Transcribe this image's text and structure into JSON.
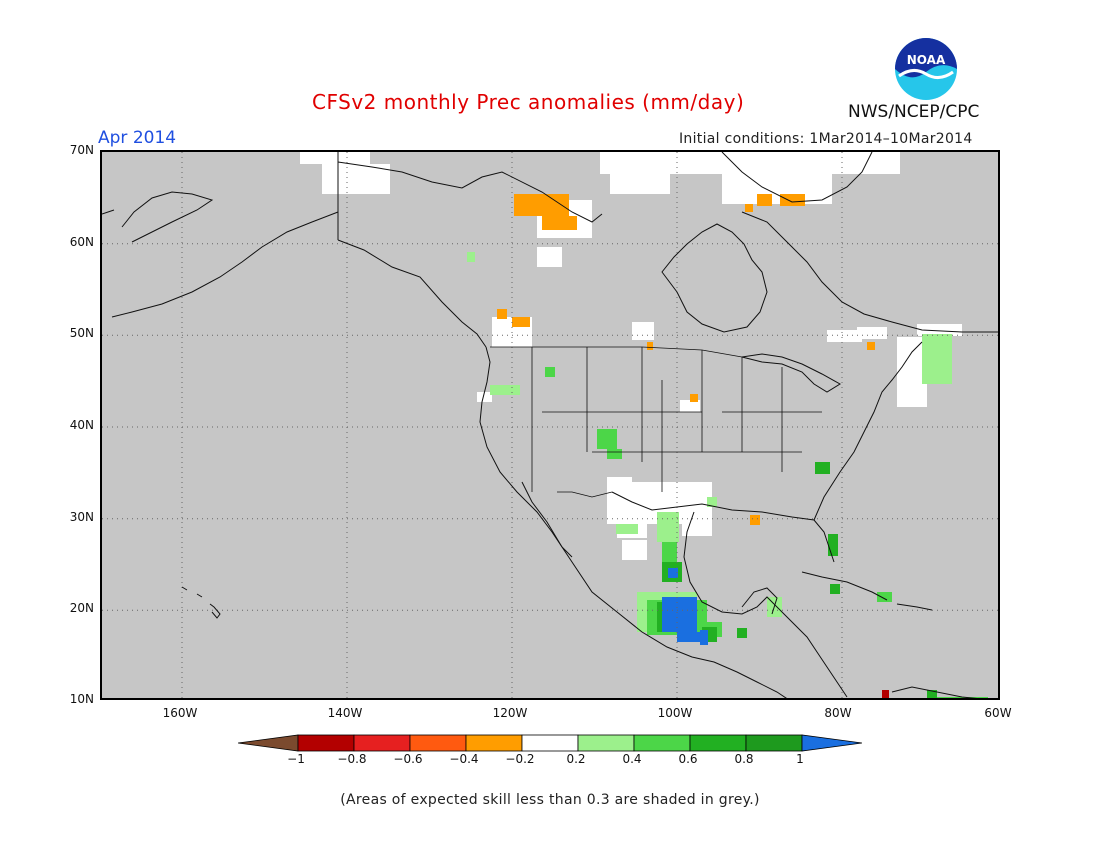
{
  "title": "CFSv2 monthly Prec anomalies (mm/day)",
  "month_label": "Apr 2014",
  "initial_conditions": "Initial conditions: 1Mar2014–10Mar2014",
  "agency": "NWS/NCEP/CPC",
  "logo_text": "NOAA",
  "latitude_labels": [
    "70N",
    "60N",
    "50N",
    "40N",
    "30N",
    "20N",
    "10N"
  ],
  "longitude_labels": [
    "160W",
    "140W",
    "120W",
    "100W",
    "80W",
    "60W"
  ],
  "colorbar": {
    "labels": [
      "−1",
      "−0.8",
      "−0.6",
      "−0.4",
      "−0.2",
      "0.2",
      "0.4",
      "0.6",
      "0.8",
      "1"
    ],
    "colors": [
      "#7b4a2e",
      "#b30000",
      "#e62020",
      "#ff5a10",
      "#ff9d00",
      "#ffffff",
      "#9cf08c",
      "#4cd648",
      "#22b022",
      "#1e9a1e",
      "#1a6fe0"
    ]
  },
  "footnote": "(Areas of expected skill less than 0.3 are shaded in grey.)",
  "colors": {
    "skill_grey": "#c6c6c6",
    "title_red": "#e00000",
    "month_blue": "#1f4fe0"
  }
}
